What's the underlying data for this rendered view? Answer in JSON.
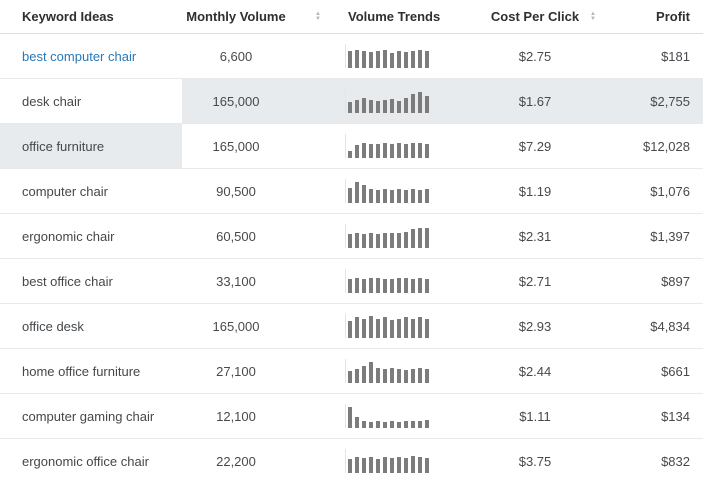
{
  "header": {
    "columns": [
      {
        "label": "Keyword Ideas",
        "sortable": false
      },
      {
        "label": "Monthly Volume",
        "sortable": true
      },
      {
        "label": "Volume Trends",
        "sortable": false
      },
      {
        "label": "Cost Per Click",
        "sortable": true
      },
      {
        "label": "Profit",
        "sortable": false
      }
    ]
  },
  "rows": [
    {
      "keyword": "best computer chair",
      "is_link": true,
      "monthly_volume": "6,600",
      "trend": [
        70,
        76,
        72,
        66,
        70,
        74,
        64,
        70,
        66,
        72,
        76,
        70
      ],
      "cpc": "$2.75",
      "profit": "$181",
      "highlight": "none"
    },
    {
      "keyword": "desk chair",
      "is_link": false,
      "monthly_volume": "165,000",
      "trend": [
        45,
        56,
        62,
        55,
        50,
        55,
        60,
        52,
        64,
        80,
        86,
        72
      ],
      "cpc": "$1.67",
      "profit": "$2,755",
      "highlight": "data"
    },
    {
      "keyword": "office furniture",
      "is_link": false,
      "monthly_volume": "165,000",
      "trend": [
        30,
        55,
        62,
        60,
        58,
        62,
        60,
        62,
        60,
        64,
        62,
        60
      ],
      "cpc": "$7.29",
      "profit": "$12,028",
      "highlight": "keyword"
    },
    {
      "keyword": "computer chair",
      "is_link": false,
      "monthly_volume": "90,500",
      "trend": [
        62,
        86,
        74,
        58,
        54,
        60,
        54,
        58,
        54,
        60,
        56,
        58
      ],
      "cpc": "$1.19",
      "profit": "$1,076",
      "highlight": "none"
    },
    {
      "keyword": "ergonomic chair",
      "is_link": false,
      "monthly_volume": "60,500",
      "trend": [
        58,
        62,
        58,
        62,
        60,
        62,
        64,
        62,
        66,
        78,
        84,
        82
      ],
      "cpc": "$2.31",
      "profit": "$1,397",
      "highlight": "none"
    },
    {
      "keyword": "best office chair",
      "is_link": false,
      "monthly_volume": "33,100",
      "trend": [
        60,
        64,
        58,
        62,
        64,
        60,
        58,
        62,
        64,
        60,
        64,
        60
      ],
      "cpc": "$2.71",
      "profit": "$897",
      "highlight": "none"
    },
    {
      "keyword": "office desk",
      "is_link": false,
      "monthly_volume": "165,000",
      "trend": [
        72,
        88,
        78,
        92,
        80,
        86,
        74,
        80,
        88,
        78,
        86,
        78
      ],
      "cpc": "$2.93",
      "profit": "$4,834",
      "highlight": "none"
    },
    {
      "keyword": "home office furniture",
      "is_link": false,
      "monthly_volume": "27,100",
      "trend": [
        48,
        60,
        72,
        88,
        64,
        58,
        62,
        58,
        56,
        60,
        64,
        58
      ],
      "cpc": "$2.44",
      "profit": "$661",
      "highlight": "none"
    },
    {
      "keyword": "computer gaming chair",
      "is_link": false,
      "monthly_volume": "12,100",
      "trend": [
        88,
        46,
        30,
        26,
        30,
        26,
        30,
        26,
        30,
        28,
        30,
        34
      ],
      "cpc": "$1.11",
      "profit": "$134",
      "highlight": "none"
    },
    {
      "keyword": "ergonomic office chair",
      "is_link": false,
      "monthly_volume": "22,200",
      "trend": [
        58,
        66,
        62,
        66,
        60,
        66,
        62,
        66,
        62,
        70,
        66,
        62
      ],
      "cpc": "$3.75",
      "profit": "$832",
      "highlight": "none"
    }
  ],
  "colors": {
    "link": "#2878b8",
    "bar": "#7c7c7c",
    "highlight": "#e8ebed"
  }
}
